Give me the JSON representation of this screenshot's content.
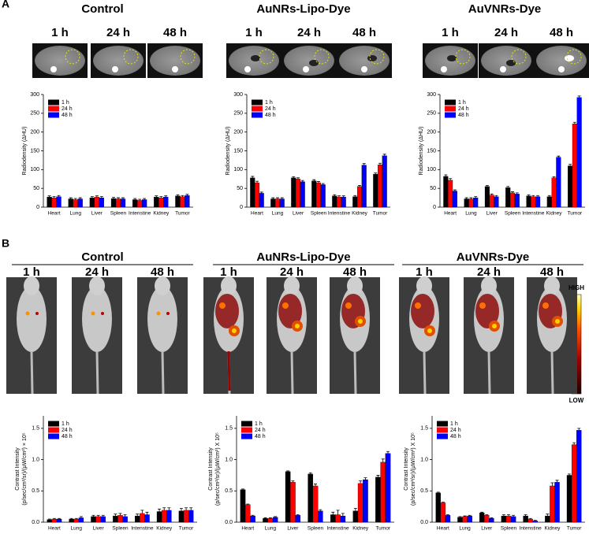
{
  "panels": [
    {
      "label": "A",
      "groups": [
        {
          "title": "Control",
          "times": [
            "1 h",
            "24 h",
            "48 h"
          ]
        },
        {
          "title": "AuNRs-Lipo-Dye",
          "times": [
            "1 h",
            "24 h",
            "48 h"
          ]
        },
        {
          "title": "AuVNRs-Dye",
          "times": [
            "1 h",
            "24 h",
            "48 h"
          ]
        }
      ]
    },
    {
      "label": "B",
      "groups": [
        {
          "title": "Control",
          "times": [
            "1 h",
            "24 h",
            "48 h"
          ]
        },
        {
          "title": "AuNRs-Lipo-Dye",
          "times": [
            "1 h",
            "24 h",
            "48 h"
          ]
        },
        {
          "title": "AuVNRs-Dye",
          "times": [
            "1 h",
            "24 h",
            "48 h"
          ]
        }
      ],
      "scale": {
        "high": "HIGH",
        "low": "LOW"
      }
    }
  ],
  "chart_data": [
    {
      "type": "bar",
      "ylabel": [
        "Radiodensity (ΔHU)"
      ],
      "categories": [
        "Heart",
        "Lung",
        "Liver",
        "Spleen",
        "Intenstine",
        "Kidney",
        "Tumor"
      ],
      "series": [
        {
          "name": "1 h",
          "color": "#000000",
          "values": [
            27,
            22,
            25,
            23,
            20,
            27,
            30
          ],
          "errors": [
            3,
            3,
            3,
            3,
            3,
            3,
            3
          ]
        },
        {
          "name": "24 h",
          "color": "#ff0000",
          "values": [
            25,
            20,
            27,
            22,
            18,
            25,
            28
          ],
          "errors": [
            3,
            3,
            3,
            3,
            3,
            3,
            3
          ]
        },
        {
          "name": "48 h",
          "color": "#0000ff",
          "values": [
            28,
            22,
            25,
            22,
            20,
            27,
            31
          ],
          "errors": [
            3,
            3,
            3,
            3,
            3,
            3,
            3
          ]
        }
      ],
      "ylim": [
        0,
        300
      ],
      "yticks": [
        0,
        50,
        100,
        150,
        200,
        250,
        300
      ]
    },
    {
      "type": "bar",
      "ylabel": [
        "Radiodensity (ΔHU)"
      ],
      "categories": [
        "Heart",
        "Lung",
        "Liver",
        "Spleen",
        "Intenstine",
        "Kidney",
        "Tumor"
      ],
      "series": [
        {
          "name": "1 h",
          "color": "#000000",
          "values": [
            78,
            22,
            78,
            70,
            30,
            28,
            88
          ],
          "errors": [
            4,
            3,
            3,
            3,
            3,
            3,
            3
          ]
        },
        {
          "name": "24 h",
          "color": "#ff0000",
          "values": [
            65,
            22,
            75,
            65,
            27,
            55,
            113
          ],
          "errors": [
            4,
            3,
            3,
            3,
            3,
            3,
            4
          ]
        },
        {
          "name": "48 h",
          "color": "#0000ff",
          "values": [
            37,
            22,
            68,
            60,
            27,
            112,
            137
          ],
          "errors": [
            3,
            3,
            3,
            3,
            3,
            4,
            4
          ]
        }
      ],
      "ylim": [
        0,
        300
      ],
      "yticks": [
        0,
        50,
        100,
        150,
        200,
        250,
        300
      ]
    },
    {
      "type": "bar",
      "ylabel": [
        "Radiodensity (ΔHU)"
      ],
      "categories": [
        "Heart",
        "Lung",
        "Liver",
        "Spleen",
        "Intenstine",
        "Kidney",
        "Tumor"
      ],
      "series": [
        {
          "name": "1 h",
          "color": "#000000",
          "values": [
            82,
            22,
            55,
            52,
            30,
            28,
            110
          ],
          "errors": [
            4,
            3,
            3,
            3,
            3,
            3,
            4
          ]
        },
        {
          "name": "24 h",
          "color": "#ff0000",
          "values": [
            72,
            22,
            32,
            38,
            28,
            78,
            222
          ],
          "errors": [
            4,
            3,
            3,
            3,
            3,
            3,
            4
          ]
        },
        {
          "name": "48 h",
          "color": "#0000ff",
          "values": [
            43,
            25,
            28,
            35,
            28,
            133,
            292
          ],
          "errors": [
            3,
            3,
            3,
            3,
            3,
            3,
            4
          ]
        }
      ],
      "ylim": [
        0,
        300
      ],
      "yticks": [
        0,
        50,
        100,
        150,
        200,
        250,
        300
      ]
    },
    {
      "type": "bar",
      "ylabel": [
        "Contrast Intensity",
        "(p/sec/cm²/sr)/(µW/cm²) × 10⁵"
      ],
      "categories": [
        "Heart",
        "Lung",
        "Liver",
        "Spleen",
        "Intenstine",
        "Kidney",
        "Tumor"
      ],
      "series": [
        {
          "name": "1 h",
          "color": "#000000",
          "values": [
            0.04,
            0.05,
            0.09,
            0.1,
            0.1,
            0.17,
            0.18
          ],
          "errors": [
            0.01,
            0.01,
            0.02,
            0.03,
            0.03,
            0.04,
            0.04
          ]
        },
        {
          "name": "24 h",
          "color": "#ff0000",
          "values": [
            0.05,
            0.05,
            0.09,
            0.11,
            0.14,
            0.19,
            0.19
          ],
          "errors": [
            0.01,
            0.01,
            0.02,
            0.03,
            0.05,
            0.04,
            0.04
          ]
        },
        {
          "name": "48 h",
          "color": "#0000ff",
          "values": [
            0.05,
            0.07,
            0.09,
            0.09,
            0.12,
            0.19,
            0.19
          ],
          "errors": [
            0.01,
            0.02,
            0.02,
            0.03,
            0.04,
            0.04,
            0.04
          ]
        }
      ],
      "ylim": [
        0,
        1.7
      ],
      "yticks": [
        {
          "value": 0,
          "label": "0.0"
        },
        0.5,
        {
          "value": 1,
          "label": "1.0"
        },
        1.5
      ]
    },
    {
      "type": "bar",
      "ylabel": [
        "Contrast Intensity",
        "(p/sec/cm²/sr)/(µW/cm²) X 10⁵"
      ],
      "categories": [
        "Heart",
        "Lung",
        "Liver",
        "Spleen",
        "Intenstine",
        "Kidney",
        "Tumor"
      ],
      "series": [
        {
          "name": "1 h",
          "color": "#000000",
          "values": [
            0.52,
            0.06,
            0.81,
            0.77,
            0.12,
            0.18,
            0.72
          ],
          "errors": [
            0.01,
            0.01,
            0.01,
            0.02,
            0.04,
            0.04,
            0.03
          ]
        },
        {
          "name": "24 h",
          "color": "#ff0000",
          "values": [
            0.28,
            0.06,
            0.64,
            0.58,
            0.12,
            0.62,
            0.96
          ],
          "errors": [
            0.01,
            0.01,
            0.02,
            0.03,
            0.07,
            0.04,
            0.05
          ]
        },
        {
          "name": "48 h",
          "color": "#0000ff",
          "values": [
            0.1,
            0.08,
            0.11,
            0.18,
            0.1,
            0.68,
            1.1
          ],
          "errors": [
            0.01,
            0.01,
            0.01,
            0.02,
            0.04,
            0.03,
            0.03
          ]
        }
      ],
      "ylim": [
        0,
        1.7
      ],
      "yticks": [
        {
          "value": 0,
          "label": "0.0"
        },
        0.5,
        {
          "value": 1,
          "label": "1.0"
        },
        1.5
      ]
    },
    {
      "type": "bar",
      "ylabel": [
        "Contrast Intensity",
        "(p/sec/cm²/sr)/(µW/cm²) X 10⁵"
      ],
      "categories": [
        "Heart",
        "Lung",
        "Liver",
        "Spleen",
        "Intenstine",
        "Kidney",
        "Tumor"
      ],
      "series": [
        {
          "name": "1 h",
          "color": "#000000",
          "values": [
            0.47,
            0.08,
            0.15,
            0.1,
            0.1,
            0.1,
            0.75
          ],
          "errors": [
            0.01,
            0.01,
            0.01,
            0.02,
            0.02,
            0.03,
            0.02
          ]
        },
        {
          "name": "24 h",
          "color": "#ff0000",
          "values": [
            0.31,
            0.09,
            0.11,
            0.1,
            0.05,
            0.58,
            1.24
          ],
          "errors": [
            0.01,
            0.01,
            0.01,
            0.02,
            0.01,
            0.05,
            0.03
          ]
        },
        {
          "name": "48 h",
          "color": "#0000ff",
          "values": [
            0.11,
            0.1,
            0.06,
            0.09,
            0.02,
            0.64,
            1.47
          ],
          "errors": [
            0.01,
            0.01,
            0.01,
            0.02,
            0.01,
            0.03,
            0.03
          ]
        }
      ],
      "ylim": [
        0,
        1.7
      ],
      "yticks": [
        {
          "value": 0,
          "label": "0.0"
        },
        0.5,
        {
          "value": 1,
          "label": "1.0"
        },
        1.5
      ]
    }
  ]
}
